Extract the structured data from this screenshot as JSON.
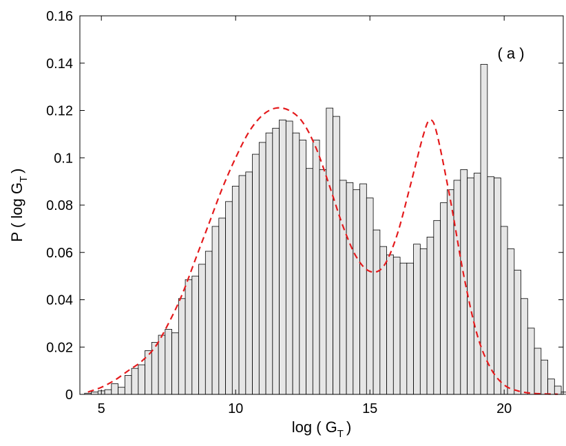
{
  "chart_data": {
    "type": "bar",
    "annotation": "( a )",
    "xlabel": {
      "main": "log ( G",
      "sub": "T",
      "end": ")"
    },
    "ylabel": {
      "main": "P ( log G",
      "sub": "T",
      "end": ")"
    },
    "xlim": [
      4.2,
      22.2
    ],
    "ylim": [
      0,
      0.16
    ],
    "xticks": [
      5,
      10,
      15,
      20
    ],
    "yticks": [
      0,
      0.02,
      0.04,
      0.06,
      0.08,
      0.1,
      0.12,
      0.14,
      0.16
    ],
    "ytick_labels": [
      "0",
      "0.02",
      "0.04",
      "0.06",
      "0.08",
      "0.1",
      "0.12",
      "0.14",
      "0.16"
    ],
    "bar_width": 0.25,
    "bar_color": "#e6e6e6",
    "bar_edge_color": "#000000",
    "fit_color": "#e41a1c",
    "histogram": {
      "bin_start": 4.375,
      "values": [
        0.0005,
        0.001,
        0.0015,
        0.002,
        0.0045,
        0.003,
        0.008,
        0.011,
        0.0125,
        0.0185,
        0.022,
        0.025,
        0.0275,
        0.026,
        0.0405,
        0.0485,
        0.05,
        0.055,
        0.0605,
        0.071,
        0.0745,
        0.0815,
        0.088,
        0.0925,
        0.094,
        0.1015,
        0.1065,
        0.1105,
        0.1125,
        0.116,
        0.1155,
        0.1105,
        0.1075,
        0.0955,
        0.1075,
        0.095,
        0.121,
        0.1175,
        0.0905,
        0.0895,
        0.0865,
        0.089,
        0.083,
        0.0695,
        0.0625,
        0.059,
        0.058,
        0.0555,
        0.0555,
        0.0635,
        0.0615,
        0.0665,
        0.0735,
        0.081,
        0.0865,
        0.0905,
        0.095,
        0.0915,
        0.0935,
        0.1395,
        0.092,
        0.0915,
        0.071,
        0.0615,
        0.0525,
        0.0405,
        0.028,
        0.0195,
        0.0145,
        0.0065,
        0.0035,
        0.001
      ]
    },
    "fit_curve": {
      "x": [
        4.5,
        5.0,
        5.5,
        6.0,
        6.5,
        7.0,
        7.5,
        8.0,
        8.5,
        9.0,
        9.5,
        10.0,
        10.5,
        11.0,
        11.5,
        12.0,
        12.5,
        13.0,
        13.5,
        14.0,
        14.5,
        15.0,
        15.5,
        16.0,
        16.5,
        17.0,
        17.25,
        17.5,
        18.0,
        18.5,
        19.0,
        19.5,
        20.0,
        20.5,
        21.0,
        21.5,
        22.0
      ],
      "y": [
        0.001,
        0.003,
        0.006,
        0.01,
        0.014,
        0.02,
        0.03,
        0.042,
        0.057,
        0.072,
        0.087,
        0.1,
        0.111,
        0.118,
        0.121,
        0.12,
        0.115,
        0.104,
        0.088,
        0.071,
        0.058,
        0.052,
        0.054,
        0.067,
        0.088,
        0.11,
        0.116,
        0.11,
        0.082,
        0.05,
        0.025,
        0.011,
        0.004,
        0.0015,
        0.0005,
        0.0002,
        0.0001
      ]
    }
  }
}
